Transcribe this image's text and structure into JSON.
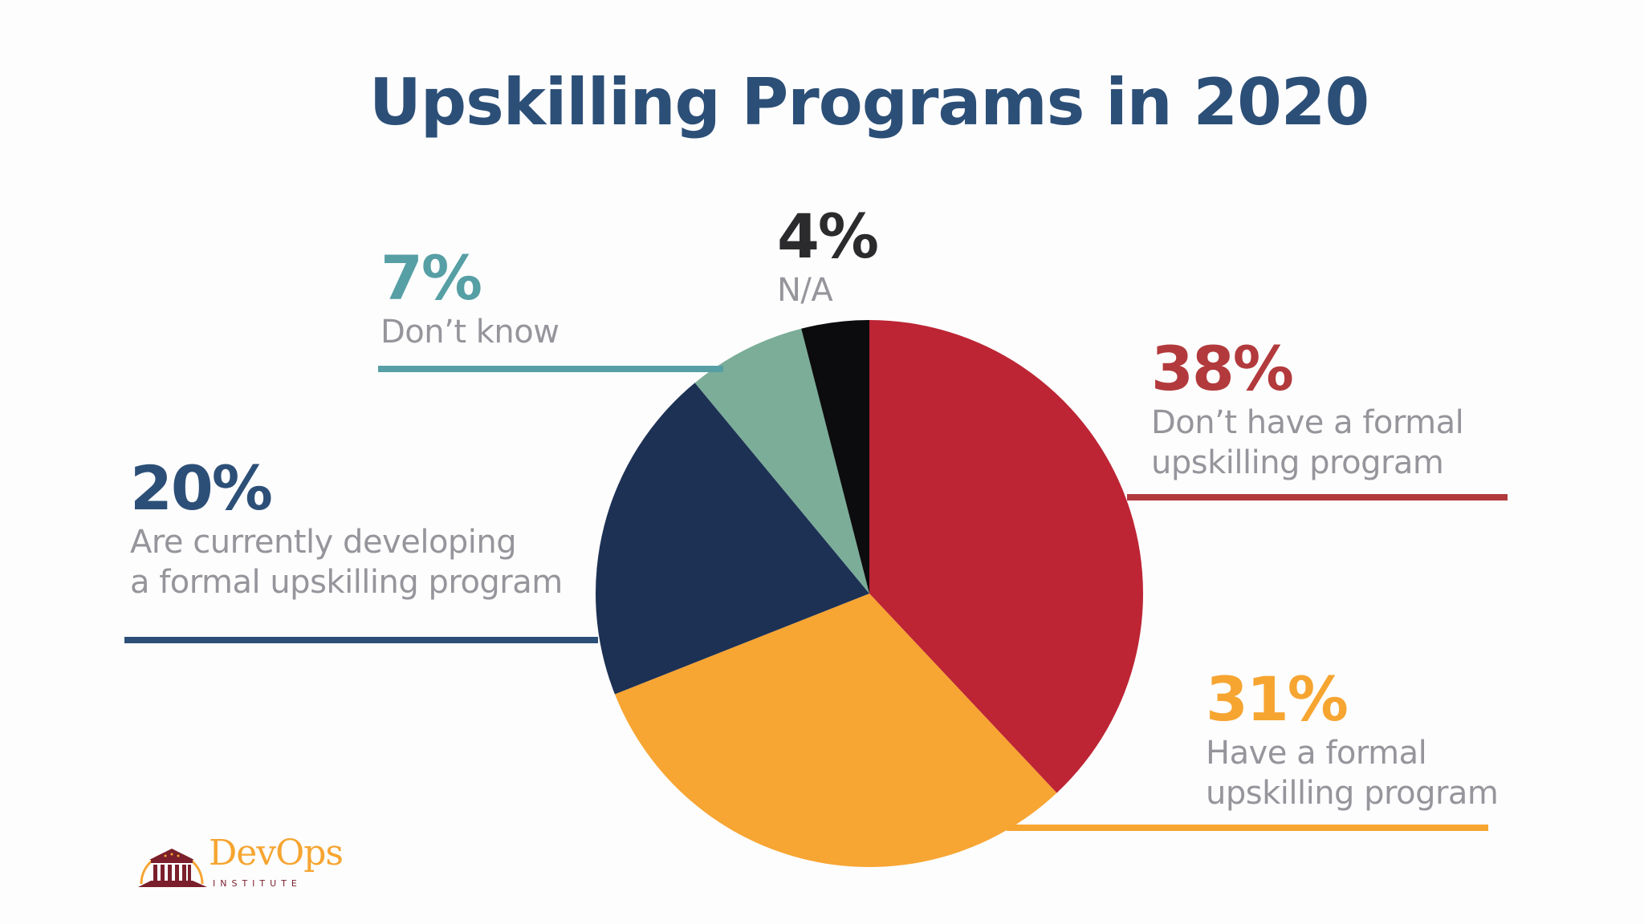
{
  "title": "Upskilling Programs in 2020",
  "labels": {
    "na": {
      "pct": "4%",
      "line1": "N/A"
    },
    "dont_know": {
      "pct": "7%",
      "line1": "Don’t know"
    },
    "dont_have": {
      "pct": "38%",
      "line1": "Don’t have a formal",
      "line2": "upskilling program"
    },
    "developing": {
      "pct": "20%",
      "line1": "Are currently developing",
      "line2": "a formal upskilling program"
    },
    "have": {
      "pct": "31%",
      "line1": "Have a formal",
      "line2": "upskilling program"
    }
  },
  "colors": {
    "title": "#2c4f77",
    "dont_have_slice": "#bd2534",
    "dont_have_text": "#b23a3c",
    "have_slice": "#f7a533",
    "have_text": "#f6a531",
    "developing_slice": "#1d3154",
    "developing_text": "#2c4f77",
    "dont_know_slice": "#7bad98",
    "dont_know_text": "#569fa4",
    "na_slice": "#0c0c0e",
    "na_text": "#2b2b2d",
    "desc_text": "#95959b"
  },
  "logo": {
    "name": "DevOps",
    "subtitle": "INSTITUTE"
  },
  "chart_data": {
    "type": "pie",
    "title": "Upskilling Programs in 2020",
    "start_angle": "12 o'clock, clockwise",
    "categories": [
      "Don’t have a formal upskilling program",
      "Have a formal upskilling program",
      "Are currently developing a formal upskilling program",
      "Don’t know",
      "N/A"
    ],
    "values": [
      38,
      31,
      20,
      7,
      4
    ],
    "unit": "%",
    "colors": [
      "#bd2534",
      "#f7a533",
      "#1d3154",
      "#7bad98",
      "#0c0c0e"
    ],
    "legend": "callout labels with leader lines"
  }
}
